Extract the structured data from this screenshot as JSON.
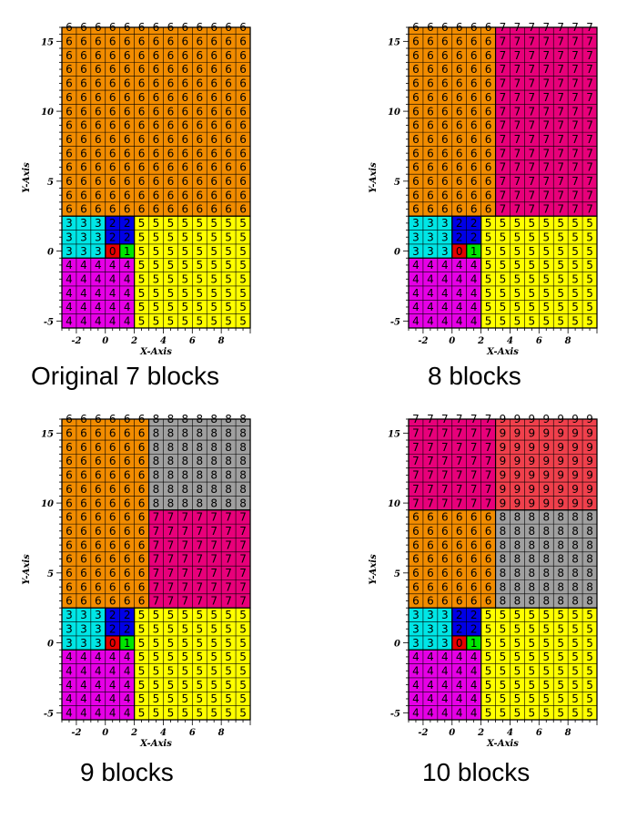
{
  "colors": {
    "0": "#e60000",
    "1": "#00e600",
    "2": "#0000e6",
    "3": "#00e6e6",
    "4": "#e600e6",
    "5": "#ffff00",
    "6": "#f28c00",
    "7": "#e8007a",
    "8": "#a0a0a0",
    "9": "#f0404c"
  },
  "axes": {
    "xlabel": "X-Axis",
    "ylabel": "Y-Axis",
    "x_ticks": [
      "-2",
      "0",
      "2",
      "4",
      "6",
      "8"
    ],
    "y_ticks": [
      "-5",
      "0",
      "5",
      "10",
      "15"
    ]
  },
  "panels": [
    {
      "caption": "Original 7 blocks",
      "blocks": [
        {
          "id": 6,
          "x0": -3,
          "x1": 10,
          "y0": 2.5,
          "y1": 16
        },
        {
          "id": 3,
          "x0": -3,
          "x1": 0,
          "y0": -0.5,
          "y1": 2.5
        },
        {
          "id": 2,
          "x0": 0,
          "x1": 2,
          "y0": 0.5,
          "y1": 2.5
        },
        {
          "id": 0,
          "x0": 0,
          "x1": 1,
          "y0": -0.5,
          "y1": 0.5
        },
        {
          "id": 1,
          "x0": 1,
          "x1": 2,
          "y0": -0.5,
          "y1": 0.5
        },
        {
          "id": 5,
          "x0": 2,
          "x1": 10,
          "y0": -5.5,
          "y1": 2.5
        },
        {
          "id": 4,
          "x0": -3,
          "x1": 2,
          "y0": -5.5,
          "y1": -0.5
        }
      ]
    },
    {
      "caption": "8 blocks",
      "blocks": [
        {
          "id": 6,
          "x0": -3,
          "x1": 3,
          "y0": 2.5,
          "y1": 16
        },
        {
          "id": 7,
          "x0": 3,
          "x1": 10,
          "y0": 2.5,
          "y1": 16
        },
        {
          "id": 3,
          "x0": -3,
          "x1": 0,
          "y0": -0.5,
          "y1": 2.5
        },
        {
          "id": 2,
          "x0": 0,
          "x1": 2,
          "y0": 0.5,
          "y1": 2.5
        },
        {
          "id": 0,
          "x0": 0,
          "x1": 1,
          "y0": -0.5,
          "y1": 0.5
        },
        {
          "id": 1,
          "x0": 1,
          "x1": 2,
          "y0": -0.5,
          "y1": 0.5
        },
        {
          "id": 5,
          "x0": 2,
          "x1": 10,
          "y0": -5.5,
          "y1": 2.5
        },
        {
          "id": 4,
          "x0": -3,
          "x1": 2,
          "y0": -5.5,
          "y1": -0.5
        }
      ]
    },
    {
      "caption": "9 blocks",
      "blocks": [
        {
          "id": 6,
          "x0": -3,
          "x1": 3,
          "y0": 2.5,
          "y1": 16
        },
        {
          "id": 8,
          "x0": 3,
          "x1": 10,
          "y0": 9.5,
          "y1": 16
        },
        {
          "id": 7,
          "x0": 3,
          "x1": 10,
          "y0": 2.5,
          "y1": 9.5
        },
        {
          "id": 3,
          "x0": -3,
          "x1": 0,
          "y0": -0.5,
          "y1": 2.5
        },
        {
          "id": 2,
          "x0": 0,
          "x1": 2,
          "y0": 0.5,
          "y1": 2.5
        },
        {
          "id": 0,
          "x0": 0,
          "x1": 1,
          "y0": -0.5,
          "y1": 0.5
        },
        {
          "id": 1,
          "x0": 1,
          "x1": 2,
          "y0": -0.5,
          "y1": 0.5
        },
        {
          "id": 5,
          "x0": 2,
          "x1": 10,
          "y0": -5.5,
          "y1": 2.5
        },
        {
          "id": 4,
          "x0": -3,
          "x1": 2,
          "y0": -5.5,
          "y1": -0.5
        }
      ]
    },
    {
      "caption": "10 blocks",
      "blocks": [
        {
          "id": 7,
          "x0": -3,
          "x1": 3,
          "y0": 9.5,
          "y1": 16
        },
        {
          "id": 9,
          "x0": 3,
          "x1": 10,
          "y0": 9.5,
          "y1": 16
        },
        {
          "id": 6,
          "x0": -3,
          "x1": 3,
          "y0": 2.5,
          "y1": 9.5
        },
        {
          "id": 8,
          "x0": 3,
          "x1": 10,
          "y0": 2.5,
          "y1": 9.5
        },
        {
          "id": 3,
          "x0": -3,
          "x1": 0,
          "y0": -0.5,
          "y1": 2.5
        },
        {
          "id": 2,
          "x0": 0,
          "x1": 2,
          "y0": 0.5,
          "y1": 2.5
        },
        {
          "id": 0,
          "x0": 0,
          "x1": 1,
          "y0": -0.5,
          "y1": 0.5
        },
        {
          "id": 1,
          "x0": 1,
          "x1": 2,
          "y0": -0.5,
          "y1": 0.5
        },
        {
          "id": 5,
          "x0": 2,
          "x1": 10,
          "y0": -5.5,
          "y1": 2.5
        },
        {
          "id": 4,
          "x0": -3,
          "x1": 2,
          "y0": -5.5,
          "y1": -0.5
        }
      ]
    }
  ]
}
